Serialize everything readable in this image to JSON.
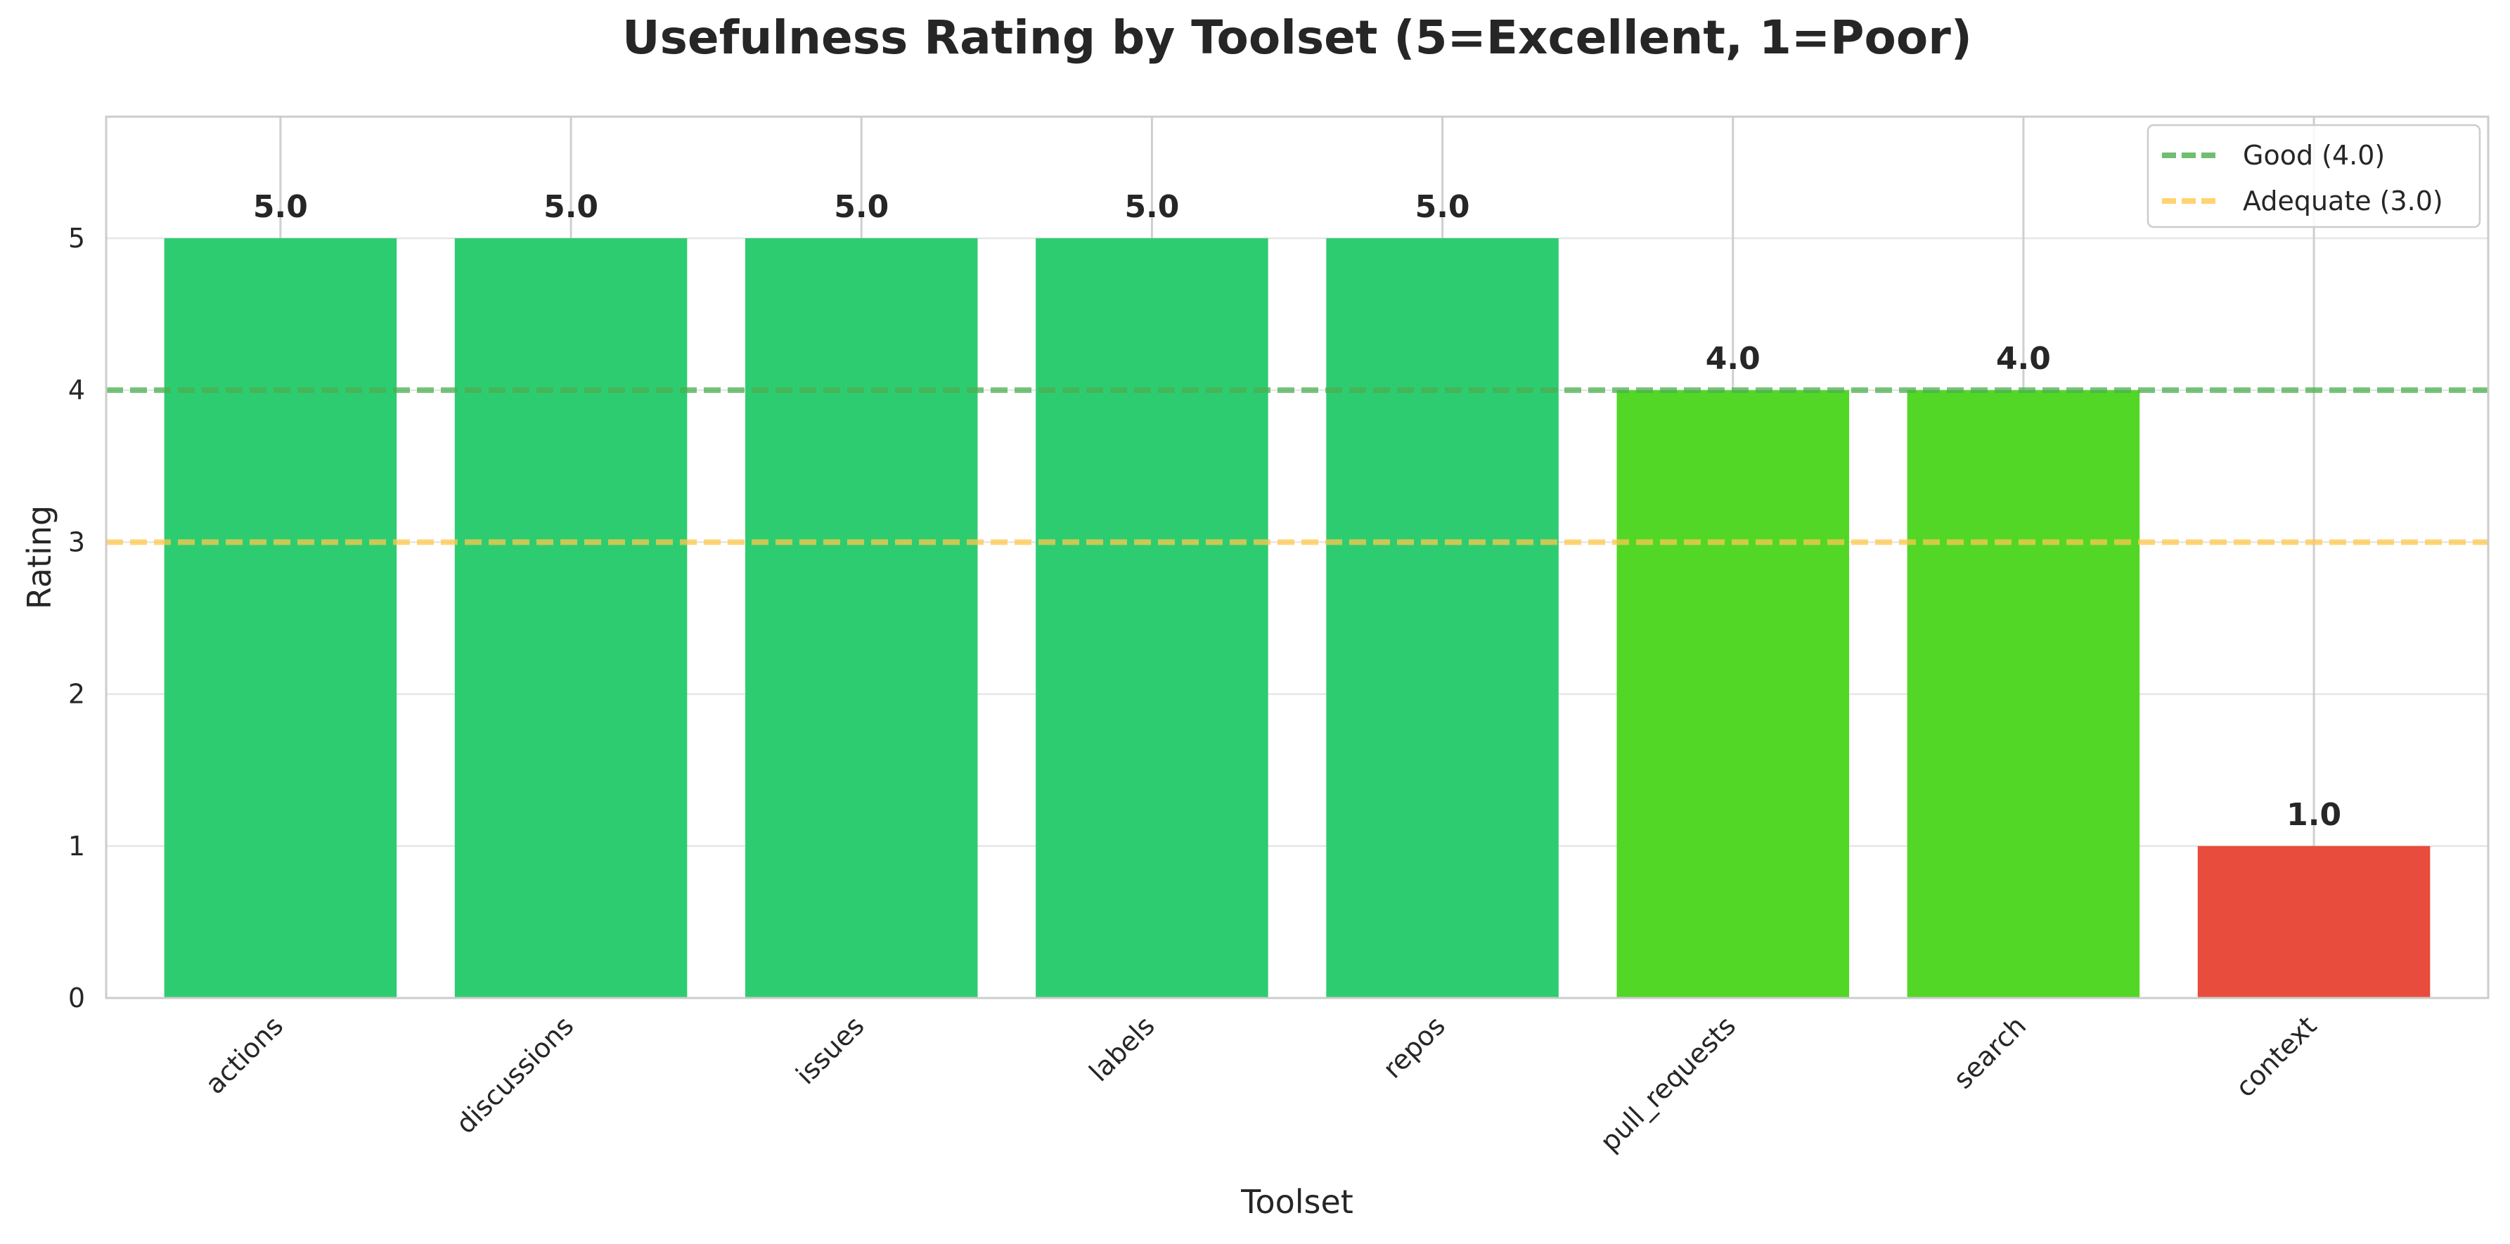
{
  "chart_data": {
    "type": "bar",
    "title": "Usefulness Rating by Toolset (5=Excellent, 1=Poor)",
    "xlabel": "Toolset",
    "ylabel": "Rating",
    "categories": [
      "actions",
      "discussions",
      "issues",
      "labels",
      "repos",
      "pull_requests",
      "search",
      "context"
    ],
    "values": [
      5.0,
      5.0,
      5.0,
      5.0,
      5.0,
      4.0,
      4.0,
      1.0
    ],
    "value_labels": [
      "5.0",
      "5.0",
      "5.0",
      "5.0",
      "5.0",
      "4.0",
      "4.0",
      "1.0"
    ],
    "bar_colors": [
      "#2ecc71",
      "#2ecc71",
      "#2ecc71",
      "#2ecc71",
      "#2ecc71",
      "#52d726",
      "#52d726",
      "#e74c3c"
    ],
    "ylim": [
      0,
      5.8
    ],
    "yticks": [
      0,
      1,
      2,
      3,
      4,
      5
    ],
    "grid": true,
    "legend_position": "top-right",
    "reference_lines": [
      {
        "label": "Good (4.0)",
        "value": 4.0,
        "color": "#4caf50"
      },
      {
        "label": "Adequate (3.0)",
        "value": 3.0,
        "color": "#ffc94d"
      }
    ]
  }
}
